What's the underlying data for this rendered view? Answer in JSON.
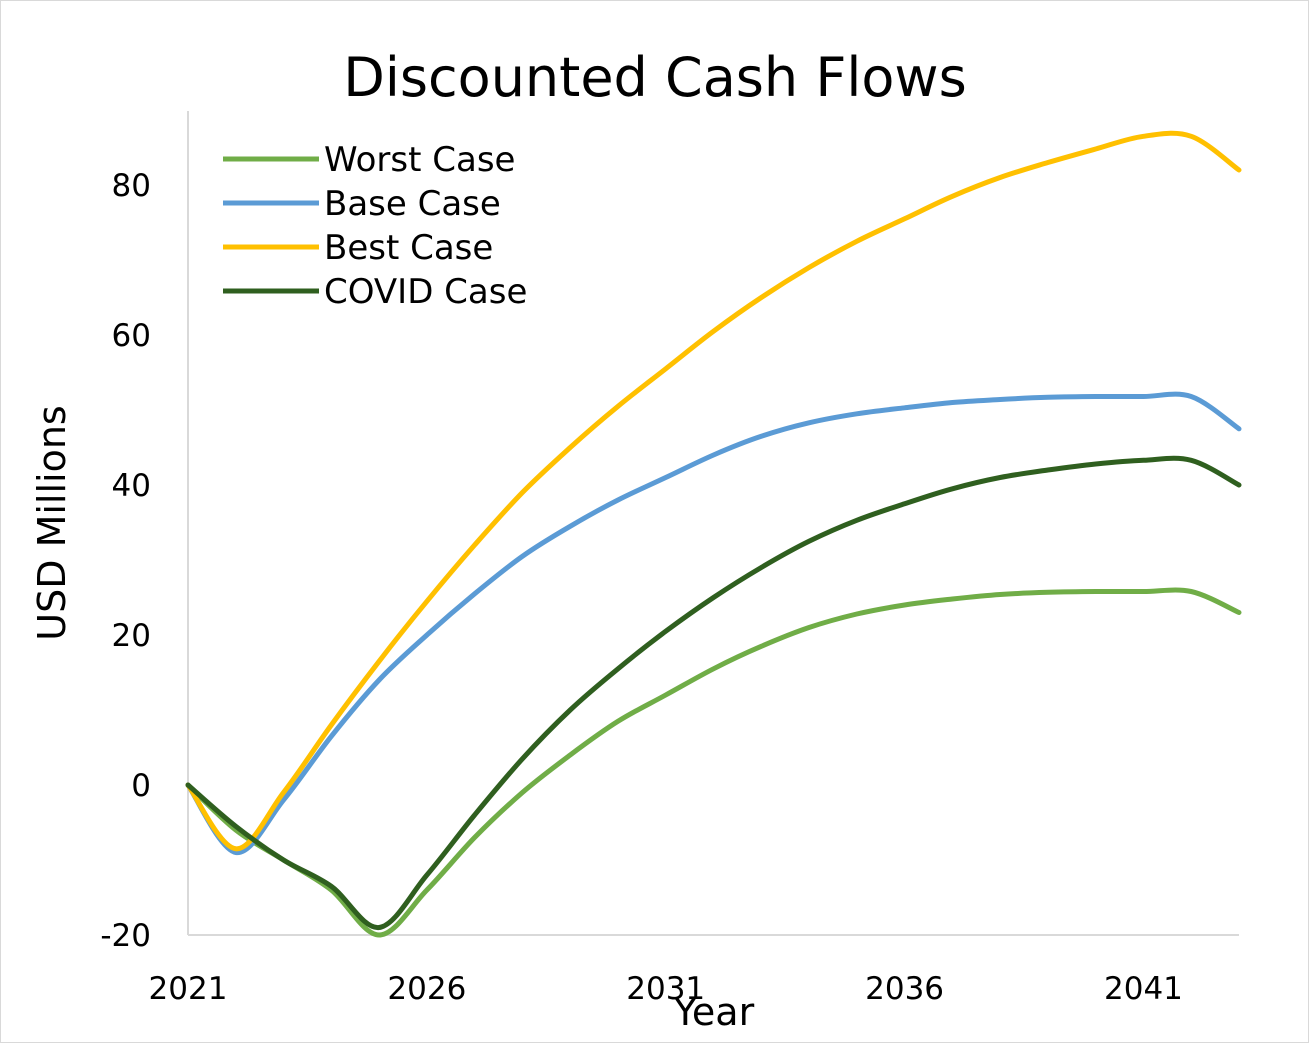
{
  "chart_data": {
    "type": "line",
    "title": "Discounted Cash Flows",
    "xlabel": "Year",
    "ylabel": "USD Millions",
    "xlim": [
      2021,
      2043
    ],
    "ylim": [
      -20,
      90
    ],
    "x_ticks": [
      "2021",
      "2026",
      "2031",
      "2036",
      "2041"
    ],
    "y_ticks": [
      "-20",
      "0",
      "20",
      "40",
      "60",
      "80"
    ],
    "grid": false,
    "legend_position": "top-left",
    "x": [
      2021,
      2022,
      2023,
      2024,
      2025,
      2026,
      2027,
      2028,
      2029,
      2030,
      2031,
      2032,
      2033,
      2034,
      2035,
      2036,
      2037,
      2038,
      2039,
      2040,
      2041,
      2042,
      2043
    ],
    "series": [
      {
        "name": "Worst Case",
        "color": "#70ad47",
        "values": [
          0,
          -6,
          -10,
          -14,
          -20,
          -14,
          -7,
          -1,
          4,
          8.5,
          12,
          15.5,
          18.5,
          21,
          22.8,
          24,
          24.8,
          25.4,
          25.7,
          25.8,
          25.8,
          25.8,
          23
        ]
      },
      {
        "name": "Base Case",
        "color": "#5b9bd5",
        "values": [
          0,
          -9,
          -2,
          6.5,
          14,
          20,
          25.5,
          30.5,
          34.5,
          38,
          41,
          44,
          46.5,
          48.3,
          49.5,
          50.3,
          51,
          51.4,
          51.7,
          51.8,
          51.8,
          51.8,
          47.5
        ]
      },
      {
        "name": "Best Case",
        "color": "#ffc000",
        "values": [
          0,
          -8.5,
          -1,
          8,
          16.5,
          24.5,
          32,
          39,
          45,
          50.5,
          55.5,
          60.5,
          65,
          69,
          72.5,
          75.5,
          78.5,
          81,
          83,
          84.8,
          86.5,
          86.5,
          82
        ]
      },
      {
        "name": "COVID Case",
        "color": "#2f5f1f",
        "values": [
          0,
          -5.5,
          -10,
          -13.5,
          -19,
          -12,
          -4,
          3.5,
          10,
          15.5,
          20.5,
          25,
          29,
          32.5,
          35.3,
          37.5,
          39.5,
          41,
          42,
          42.8,
          43.3,
          43.3,
          40
        ]
      }
    ]
  }
}
